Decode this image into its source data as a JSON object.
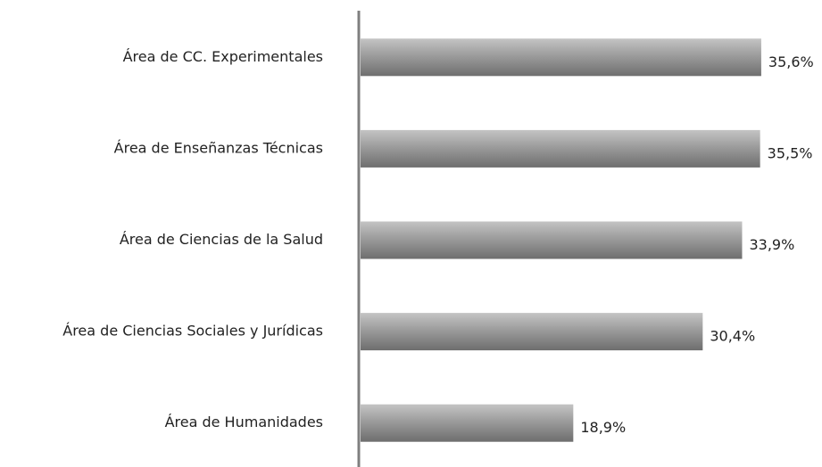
{
  "chart_data": {
    "type": "bar",
    "orientation": "horizontal",
    "categories": [
      "Área de CC. Experimentales",
      "Área de Enseñanzas Técnicas",
      "Área de Ciencias de la Salud",
      "Área de Ciencias Sociales y Jurídicas",
      "Área de Humanidades"
    ],
    "values": [
      35.6,
      35.5,
      33.9,
      30.4,
      18.9
    ],
    "value_labels": [
      "35,6%",
      "35,5%",
      "33,9%",
      "30,4%",
      "18,9%"
    ],
    "color": "#999999"
  }
}
